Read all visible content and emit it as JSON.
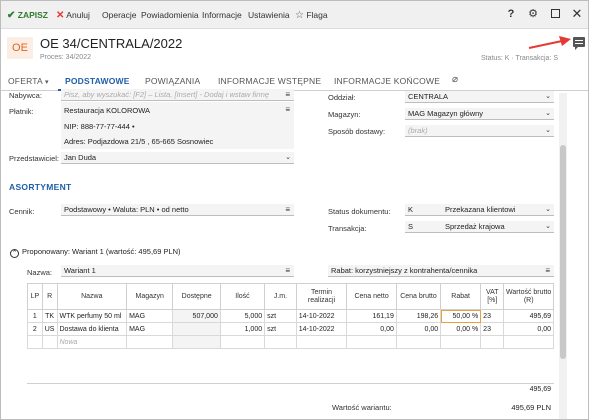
{
  "toolbar": {
    "save": "ZAPISZ",
    "cancel": "Anuluj",
    "operations": "Operacje",
    "notifications": "Powiadomienia",
    "information": "Informacje",
    "settings": "Ustawienia",
    "flag": "Flaga"
  },
  "header": {
    "avatar": "OE",
    "title": "OE 34/CENTRALA/2022",
    "process": "Proces: 34/2022",
    "status": "Status: K  ·  Transakcja: S"
  },
  "tabs": [
    "OFERTA",
    "PODSTAWOWE",
    "POWIĄZANIA",
    "INFORMACJE WSTĘPNE",
    "INFORMACJE KOŃCOWE"
  ],
  "form": {
    "nabywca_label": "Nabywca:",
    "nabywca_placeholder": "Pisz, aby wyszukać: [F2] – Lista, [Insert] - Dodaj i wstaw firmę",
    "platnik_label": "Płatnik:",
    "platnik_name": "Restauracja KOLOROWA",
    "platnik_nip": "NIP:  888-77-77-444  •",
    "platnik_address": "Adres:  Podjazdowa  21/5 , 65-665 Sosnowiec",
    "przedstawiciel_label": "Przedstawiciel:",
    "przedstawiciel_value": "Jan Duda",
    "oddzial_label": "Oddział:",
    "oddzial_value": "CENTRALA",
    "magazyn_label": "Magazyn:",
    "magazyn_value": "MAG  Magazyn główny",
    "sposob_label": "Sposób dostawy:",
    "sposob_placeholder": "(brak)"
  },
  "assortment": {
    "section_title": "ASORTYMENT",
    "cennik_label": "Cennik:",
    "cennik_value": "Podstawowy • Waluta: PLN • od netto",
    "status_label": "Status dokumentu:",
    "status_code": "K",
    "status_value": "Przekazana klientowi",
    "transakcja_label": "Transakcja:",
    "transakcja_code": "S",
    "transakcja_value": "Sprzedaż krajowa",
    "proposed": "Proponowany: Wariant 1 (wartość: 495,69 PLN)",
    "nazwa_label": "Nazwa:",
    "nazwa_value": "Wariant 1",
    "rabat_text": "Rabat: korzystniejszy z kontrahenta/cennika"
  },
  "table": {
    "headers": [
      "LP",
      "R",
      "Nazwa",
      "Magazyn",
      "Dostępne",
      "Ilość",
      "J.m.",
      "Termin realizacji",
      "Cena netto",
      "Cena brutto",
      "Rabat",
      "VAT [%]",
      "Wartość brutto (R)"
    ],
    "rows": [
      [
        "1",
        "TK",
        "WTK perfumy 50 ml",
        "MAG",
        "507,000",
        "5,000",
        "szt",
        "14-10-2022",
        "161,19",
        "198,26",
        "50,00 %",
        "23",
        "495,69"
      ],
      [
        "2",
        "US",
        "Dostawa do klienta",
        "MAG",
        "",
        "1,000",
        "szt",
        "14-10-2022",
        "0,00",
        "0,00",
        "0,00 %",
        "23",
        "0,00"
      ]
    ],
    "new_row_placeholder": "Nowa",
    "total": "495,69"
  },
  "variant_value_label": "Wartość wariantu:",
  "variant_value": "495,69 PLN",
  "icons": {
    "save": "check-icon",
    "cancel": "x-icon",
    "flag": "star-icon",
    "help": "question-icon",
    "settings": "gear-icon",
    "maximize": "square-icon",
    "close": "close-icon",
    "attachment": "paperclip-icon",
    "side_panel": "comment-icon",
    "annotation": "red-arrow"
  },
  "colors": {
    "accent": "#1f5fa8",
    "save": "#2e7d32",
    "cancel": "#e53935",
    "avatar": "#e0651b",
    "arrow": "#e53935"
  }
}
